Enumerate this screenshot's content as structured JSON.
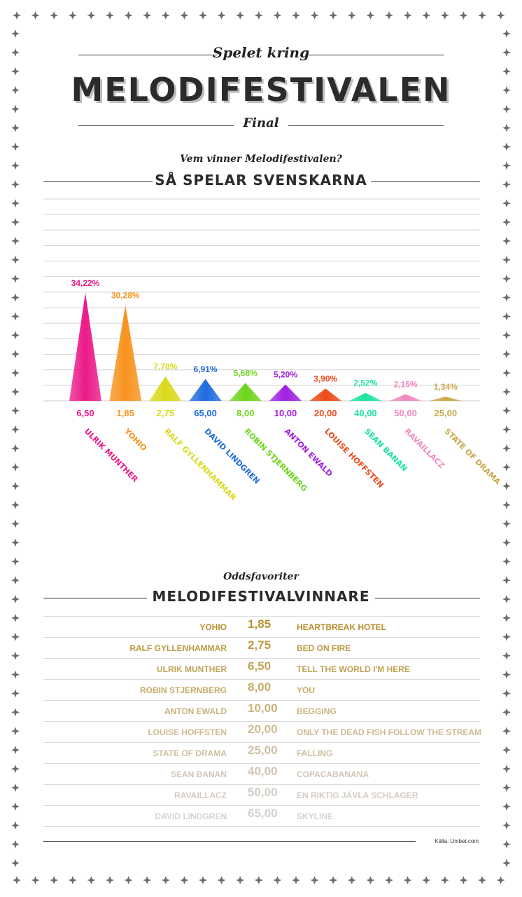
{
  "header": {
    "kicker": "Spelet kring",
    "title": "MELODIFESTIVALEN",
    "subtitle": "Final"
  },
  "section1": {
    "kicker": "Vem vinner Melodifestivalen?",
    "title": "SÅ SPELAR SVENSKARNA"
  },
  "chart_data": {
    "type": "bar",
    "categories": [
      "ULRIK MUNTHER",
      "YOHIO",
      "RALF GYLLENHAMMAR",
      "DAVID LINDGREN",
      "ROBIN STJERNBERG",
      "ANTON EWALD",
      "LOUISE HOFFSTEN",
      "SEAN BANAN",
      "RAVAILLACZ",
      "STATE OF DRAMA"
    ],
    "values": [
      34.22,
      30.28,
      7.78,
      6.91,
      5.68,
      5.2,
      3.9,
      2.52,
      2.15,
      1.34
    ],
    "value_labels": [
      "34,22%",
      "30,28%",
      "7,78%",
      "6,91%",
      "5,68%",
      "5,20%",
      "3,90%",
      "2,52%",
      "2,15%",
      "1,34%"
    ],
    "odds_labels": [
      "6,50",
      "1,85",
      "2,75",
      "65,00",
      "8,00",
      "10,00",
      "20,00",
      "40,00",
      "50,00",
      "25,00"
    ],
    "colors": [
      "#ec1a8a",
      "#f7931e",
      "#d9d91a",
      "#1f6be0",
      "#6ed41a",
      "#a020e0",
      "#ee4a1a",
      "#1ae59a",
      "#f08ac0",
      "#caa84a"
    ],
    "ylim": [
      0,
      40
    ],
    "grid": true
  },
  "section2": {
    "kicker": "Oddsfavoriter",
    "title": "MELODIFESTIVALVINNARE",
    "rows": [
      {
        "name": "YOHIO",
        "odds": "1,85",
        "song": "HEARTBREAK HOTEL",
        "color": "#b8902e"
      },
      {
        "name": "RALF GYLLENHAMMAR",
        "odds": "2,75",
        "song": "BED ON FIRE",
        "color": "#bd9a42"
      },
      {
        "name": "ULRIK MUNTHER",
        "odds": "6,50",
        "song": "TELL THE WORLD I'M HERE",
        "color": "#c2a356"
      },
      {
        "name": "ROBIN STJERNBERG",
        "odds": "8,00",
        "song": "YOU",
        "color": "#c6ac6a"
      },
      {
        "name": "ANTON EWALD",
        "odds": "10,00",
        "song": "BEGGING",
        "color": "#cab47e"
      },
      {
        "name": "LOUISE HOFFSTEN",
        "odds": "20,00",
        "song": "ONLY THE DEAD FISH FOLLOW THE STREAM",
        "color": "#ccba90"
      },
      {
        "name": "STATE OF DRAMA",
        "odds": "25,00",
        "song": "FALLING",
        "color": "#cfc0a2"
      },
      {
        "name": "SEAN BANAN",
        "odds": "40,00",
        "song": "COPACABANANA",
        "color": "#d1c6b4"
      },
      {
        "name": "RAVAILLACZ",
        "odds": "50,00",
        "song": "EN RIKTIG JÄVLA SCHLAGER",
        "color": "#d3ccc4"
      },
      {
        "name": "DAVID LINDGREN",
        "odds": "65,00",
        "song": "SKYLINE",
        "color": "#d5d2d0"
      }
    ]
  },
  "source": "Källa: Unibet.com"
}
